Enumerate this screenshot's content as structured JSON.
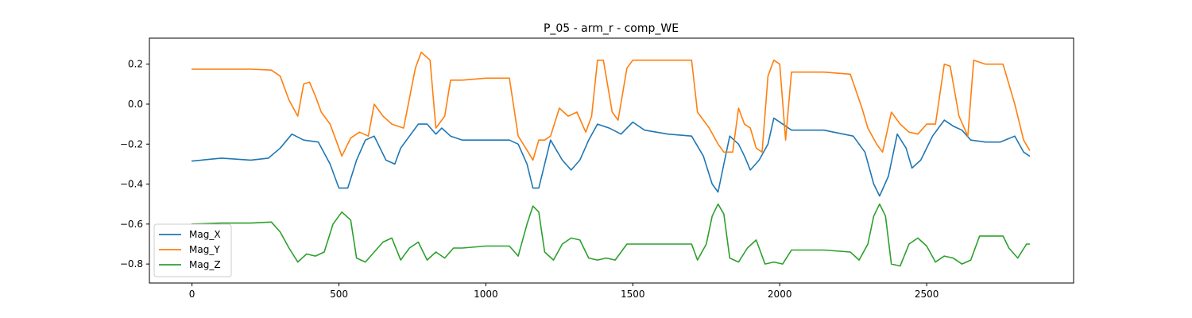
{
  "chart_data": {
    "type": "line",
    "title": "P_05 - arm_r - comp_WE",
    "xlabel": "",
    "ylabel": "",
    "xlim": [
      -145,
      3000
    ],
    "ylim": [
      -0.895,
      0.33
    ],
    "xticks": [
      0,
      500,
      1000,
      1500,
      2000,
      2500
    ],
    "yticks": [
      0.2,
      0.0,
      -0.2,
      -0.4,
      -0.6,
      -0.8
    ],
    "ytick_labels": [
      "0.2",
      "0.0",
      "−0.2",
      "−0.4",
      "−0.6",
      "−0.8"
    ],
    "grid": false,
    "legend_position": "lower-left",
    "series": [
      {
        "name": "Mag_X",
        "color": "#1f77b4",
        "points": [
          [
            0,
            -0.285
          ],
          [
            100,
            -0.27
          ],
          [
            200,
            -0.28
          ],
          [
            260,
            -0.27
          ],
          [
            300,
            -0.22
          ],
          [
            340,
            -0.15
          ],
          [
            380,
            -0.18
          ],
          [
            430,
            -0.19
          ],
          [
            470,
            -0.3
          ],
          [
            500,
            -0.42
          ],
          [
            530,
            -0.42
          ],
          [
            560,
            -0.28
          ],
          [
            590,
            -0.18
          ],
          [
            620,
            -0.16
          ],
          [
            660,
            -0.28
          ],
          [
            690,
            -0.3
          ],
          [
            710,
            -0.22
          ],
          [
            740,
            -0.16
          ],
          [
            770,
            -0.1
          ],
          [
            800,
            -0.1
          ],
          [
            830,
            -0.15
          ],
          [
            850,
            -0.12
          ],
          [
            880,
            -0.16
          ],
          [
            920,
            -0.18
          ],
          [
            1000,
            -0.18
          ],
          [
            1080,
            -0.18
          ],
          [
            1110,
            -0.2
          ],
          [
            1140,
            -0.3
          ],
          [
            1160,
            -0.42
          ],
          [
            1180,
            -0.42
          ],
          [
            1200,
            -0.3
          ],
          [
            1220,
            -0.18
          ],
          [
            1260,
            -0.28
          ],
          [
            1290,
            -0.33
          ],
          [
            1320,
            -0.28
          ],
          [
            1350,
            -0.18
          ],
          [
            1380,
            -0.1
          ],
          [
            1420,
            -0.12
          ],
          [
            1460,
            -0.15
          ],
          [
            1500,
            -0.09
          ],
          [
            1540,
            -0.13
          ],
          [
            1620,
            -0.15
          ],
          [
            1700,
            -0.16
          ],
          [
            1740,
            -0.26
          ],
          [
            1770,
            -0.4
          ],
          [
            1790,
            -0.44
          ],
          [
            1810,
            -0.3
          ],
          [
            1830,
            -0.16
          ],
          [
            1860,
            -0.2
          ],
          [
            1880,
            -0.26
          ],
          [
            1900,
            -0.33
          ],
          [
            1930,
            -0.28
          ],
          [
            1960,
            -0.2
          ],
          [
            1980,
            -0.07
          ],
          [
            2010,
            -0.1
          ],
          [
            2040,
            -0.13
          ],
          [
            2080,
            -0.13
          ],
          [
            2150,
            -0.13
          ],
          [
            2250,
            -0.16
          ],
          [
            2290,
            -0.24
          ],
          [
            2320,
            -0.4
          ],
          [
            2340,
            -0.46
          ],
          [
            2370,
            -0.36
          ],
          [
            2400,
            -0.15
          ],
          [
            2430,
            -0.22
          ],
          [
            2450,
            -0.32
          ],
          [
            2480,
            -0.28
          ],
          [
            2520,
            -0.16
          ],
          [
            2560,
            -0.08
          ],
          [
            2590,
            -0.11
          ],
          [
            2620,
            -0.13
          ],
          [
            2650,
            -0.18
          ],
          [
            2700,
            -0.19
          ],
          [
            2750,
            -0.19
          ],
          [
            2800,
            -0.16
          ],
          [
            2830,
            -0.24
          ],
          [
            2850,
            -0.26
          ]
        ]
      },
      {
        "name": "Mag_Y",
        "color": "#ff7f0e",
        "points": [
          [
            0,
            0.175
          ],
          [
            100,
            0.175
          ],
          [
            200,
            0.175
          ],
          [
            270,
            0.17
          ],
          [
            300,
            0.14
          ],
          [
            330,
            0.02
          ],
          [
            360,
            -0.06
          ],
          [
            380,
            0.1
          ],
          [
            400,
            0.11
          ],
          [
            420,
            0.04
          ],
          [
            440,
            -0.04
          ],
          [
            470,
            -0.1
          ],
          [
            490,
            -0.18
          ],
          [
            510,
            -0.26
          ],
          [
            540,
            -0.17
          ],
          [
            570,
            -0.14
          ],
          [
            600,
            -0.16
          ],
          [
            620,
            0.0
          ],
          [
            650,
            -0.06
          ],
          [
            680,
            -0.1
          ],
          [
            720,
            -0.12
          ],
          [
            760,
            0.18
          ],
          [
            780,
            0.26
          ],
          [
            810,
            0.22
          ],
          [
            830,
            -0.12
          ],
          [
            860,
            -0.06
          ],
          [
            880,
            0.12
          ],
          [
            900,
            0.12
          ],
          [
            920,
            0.12
          ],
          [
            1000,
            0.13
          ],
          [
            1080,
            0.13
          ],
          [
            1110,
            -0.16
          ],
          [
            1140,
            -0.23
          ],
          [
            1160,
            -0.28
          ],
          [
            1180,
            -0.18
          ],
          [
            1200,
            -0.18
          ],
          [
            1220,
            -0.16
          ],
          [
            1250,
            -0.02
          ],
          [
            1280,
            -0.06
          ],
          [
            1310,
            -0.04
          ],
          [
            1340,
            -0.14
          ],
          [
            1360,
            -0.06
          ],
          [
            1380,
            0.22
          ],
          [
            1400,
            0.22
          ],
          [
            1430,
            -0.04
          ],
          [
            1450,
            -0.08
          ],
          [
            1480,
            0.18
          ],
          [
            1500,
            0.22
          ],
          [
            1550,
            0.22
          ],
          [
            1620,
            0.22
          ],
          [
            1700,
            0.22
          ],
          [
            1720,
            -0.04
          ],
          [
            1760,
            -0.12
          ],
          [
            1790,
            -0.2
          ],
          [
            1810,
            -0.24
          ],
          [
            1840,
            -0.24
          ],
          [
            1860,
            -0.02
          ],
          [
            1880,
            -0.1
          ],
          [
            1900,
            -0.12
          ],
          [
            1920,
            -0.22
          ],
          [
            1940,
            -0.24
          ],
          [
            1960,
            0.14
          ],
          [
            1980,
            0.22
          ],
          [
            2000,
            0.2
          ],
          [
            2020,
            -0.18
          ],
          [
            2040,
            0.16
          ],
          [
            2080,
            0.16
          ],
          [
            2150,
            0.16
          ],
          [
            2240,
            0.15
          ],
          [
            2280,
            -0.02
          ],
          [
            2300,
            -0.12
          ],
          [
            2330,
            -0.2
          ],
          [
            2350,
            -0.24
          ],
          [
            2380,
            -0.04
          ],
          [
            2410,
            -0.1
          ],
          [
            2440,
            -0.14
          ],
          [
            2470,
            -0.15
          ],
          [
            2500,
            -0.1
          ],
          [
            2530,
            -0.1
          ],
          [
            2560,
            0.2
          ],
          [
            2580,
            0.19
          ],
          [
            2610,
            -0.06
          ],
          [
            2640,
            -0.16
          ],
          [
            2660,
            0.22
          ],
          [
            2700,
            0.2
          ],
          [
            2760,
            0.2
          ],
          [
            2800,
            0.0
          ],
          [
            2830,
            -0.18
          ],
          [
            2850,
            -0.23
          ]
        ]
      },
      {
        "name": "Mag_Z",
        "color": "#2ca02c",
        "points": [
          [
            0,
            -0.6
          ],
          [
            100,
            -0.595
          ],
          [
            200,
            -0.595
          ],
          [
            270,
            -0.59
          ],
          [
            300,
            -0.64
          ],
          [
            330,
            -0.72
          ],
          [
            360,
            -0.79
          ],
          [
            390,
            -0.75
          ],
          [
            420,
            -0.76
          ],
          [
            450,
            -0.74
          ],
          [
            480,
            -0.6
          ],
          [
            510,
            -0.54
          ],
          [
            540,
            -0.58
          ],
          [
            560,
            -0.77
          ],
          [
            590,
            -0.79
          ],
          [
            620,
            -0.74
          ],
          [
            650,
            -0.69
          ],
          [
            680,
            -0.67
          ],
          [
            710,
            -0.78
          ],
          [
            740,
            -0.72
          ],
          [
            770,
            -0.69
          ],
          [
            800,
            -0.78
          ],
          [
            830,
            -0.74
          ],
          [
            860,
            -0.77
          ],
          [
            890,
            -0.72
          ],
          [
            920,
            -0.72
          ],
          [
            1000,
            -0.71
          ],
          [
            1080,
            -0.71
          ],
          [
            1110,
            -0.76
          ],
          [
            1140,
            -0.6
          ],
          [
            1160,
            -0.51
          ],
          [
            1180,
            -0.54
          ],
          [
            1200,
            -0.74
          ],
          [
            1230,
            -0.78
          ],
          [
            1260,
            -0.7
          ],
          [
            1290,
            -0.67
          ],
          [
            1320,
            -0.68
          ],
          [
            1350,
            -0.77
          ],
          [
            1380,
            -0.78
          ],
          [
            1410,
            -0.77
          ],
          [
            1440,
            -0.78
          ],
          [
            1480,
            -0.7
          ],
          [
            1520,
            -0.7
          ],
          [
            1620,
            -0.7
          ],
          [
            1700,
            -0.7
          ],
          [
            1720,
            -0.78
          ],
          [
            1750,
            -0.7
          ],
          [
            1770,
            -0.56
          ],
          [
            1790,
            -0.5
          ],
          [
            1810,
            -0.55
          ],
          [
            1830,
            -0.77
          ],
          [
            1860,
            -0.79
          ],
          [
            1890,
            -0.72
          ],
          [
            1920,
            -0.68
          ],
          [
            1950,
            -0.8
          ],
          [
            1980,
            -0.79
          ],
          [
            2010,
            -0.8
          ],
          [
            2040,
            -0.73
          ],
          [
            2080,
            -0.73
          ],
          [
            2150,
            -0.73
          ],
          [
            2240,
            -0.74
          ],
          [
            2270,
            -0.78
          ],
          [
            2300,
            -0.7
          ],
          [
            2320,
            -0.56
          ],
          [
            2340,
            -0.5
          ],
          [
            2360,
            -0.56
          ],
          [
            2380,
            -0.8
          ],
          [
            2410,
            -0.81
          ],
          [
            2440,
            -0.7
          ],
          [
            2470,
            -0.67
          ],
          [
            2500,
            -0.71
          ],
          [
            2530,
            -0.79
          ],
          [
            2560,
            -0.76
          ],
          [
            2590,
            -0.77
          ],
          [
            2620,
            -0.8
          ],
          [
            2650,
            -0.78
          ],
          [
            2680,
            -0.66
          ],
          [
            2720,
            -0.66
          ],
          [
            2760,
            -0.66
          ],
          [
            2780,
            -0.72
          ],
          [
            2810,
            -0.77
          ],
          [
            2840,
            -0.7
          ],
          [
            2850,
            -0.7
          ]
        ]
      }
    ]
  }
}
